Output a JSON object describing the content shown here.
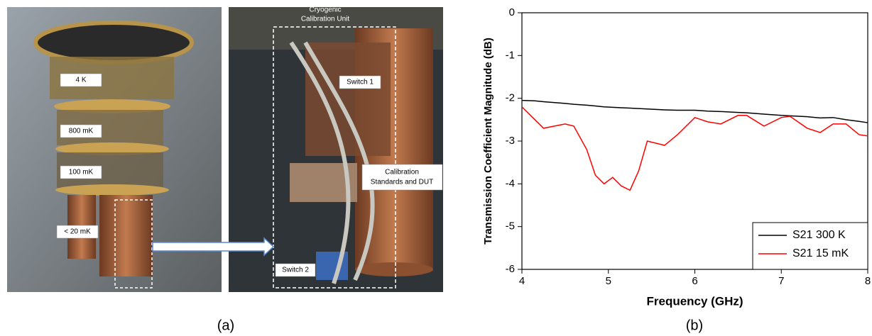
{
  "photo_labels": {
    "stages": [
      "4 K",
      "800 mK",
      "100 mK",
      "< 20 mK"
    ],
    "unit": [
      "Cryogenic",
      "Calibration Unit"
    ],
    "switch1": "Switch 1",
    "standards": [
      "Calibration",
      "Standards and DUT"
    ],
    "switch2": "Switch 2"
  },
  "captions": [
    "(a)",
    "(b)"
  ],
  "chart_data": {
    "type": "line",
    "x_label": "Frequency (GHz)",
    "y_label": "Transmission Coefficient Magnitude (dB)",
    "x": [
      4,
      4.15,
      4.25,
      4.5,
      4.6,
      4.75,
      4.85,
      4.95,
      5.05,
      5.15,
      5.25,
      5.35,
      5.45,
      5.55,
      5.65,
      5.8,
      6,
      6.15,
      6.3,
      6.5,
      6.6,
      6.8,
      7,
      7.1,
      7.3,
      7.45,
      7.6,
      7.75,
      7.9,
      8
    ],
    "series": [
      {
        "name": "S21 300 K",
        "color": "#000000",
        "values": [
          -2.05,
          -2.06,
          -2.08,
          -2.12,
          -2.14,
          -2.16,
          -2.18,
          -2.2,
          -2.21,
          -2.22,
          -2.23,
          -2.24,
          -2.25,
          -2.26,
          -2.27,
          -2.28,
          -2.28,
          -2.3,
          -2.31,
          -2.33,
          -2.34,
          -2.37,
          -2.4,
          -2.41,
          -2.43,
          -2.46,
          -2.45,
          -2.5,
          -2.54,
          -2.57
        ]
      },
      {
        "name": "S21 15 mK",
        "color": "#ff0000",
        "values": [
          -2.2,
          -2.5,
          -2.7,
          -2.6,
          -2.65,
          -3.2,
          -3.8,
          -4.0,
          -3.85,
          -4.05,
          -4.15,
          -3.7,
          -3.0,
          -3.05,
          -3.1,
          -2.85,
          -2.45,
          -2.55,
          -2.6,
          -2.4,
          -2.4,
          -2.65,
          -2.45,
          -2.42,
          -2.7,
          -2.8,
          -2.6,
          -2.6,
          -2.85,
          -2.88
        ]
      }
    ],
    "xlim": [
      4,
      8
    ],
    "xticks": [
      4,
      5,
      6,
      7,
      8
    ],
    "ylim": [
      -6,
      0
    ],
    "yticks": [
      -6,
      -5,
      -4,
      -3,
      -2,
      -1,
      0
    ],
    "legend": "lower right"
  }
}
